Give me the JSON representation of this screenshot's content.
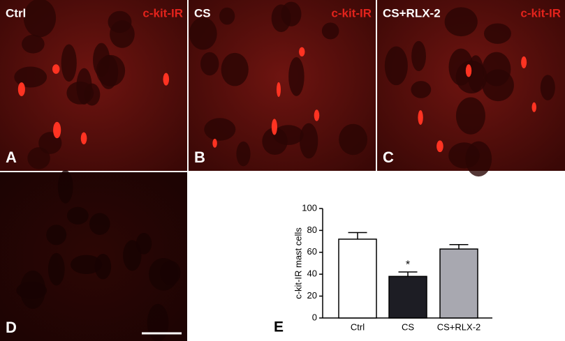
{
  "panels": [
    {
      "name": "Ctrl",
      "stain": "c-kit-IR",
      "letter": "A"
    },
    {
      "name": "CS",
      "stain": "c-kit-IR",
      "letter": "B"
    },
    {
      "name": "CS+RLX-2",
      "stain": "c-kit-IR",
      "letter": "C"
    },
    {
      "letter": "D"
    }
  ],
  "chart_data": {
    "type": "bar",
    "letter": "E",
    "ylabel": "c-kit-IR mast cells",
    "categories": [
      "Ctrl",
      "CS",
      "CS+RLX-2"
    ],
    "values": [
      72,
      38,
      63
    ],
    "errors": [
      6,
      4,
      4
    ],
    "colors": [
      "#ffffff",
      "#1d1d24",
      "#a8a8b0"
    ],
    "annotations": [
      {
        "index": 1,
        "text": "*"
      }
    ],
    "ylim": [
      0,
      100
    ],
    "yticks": [
      0,
      20,
      40,
      60,
      80,
      100
    ]
  }
}
